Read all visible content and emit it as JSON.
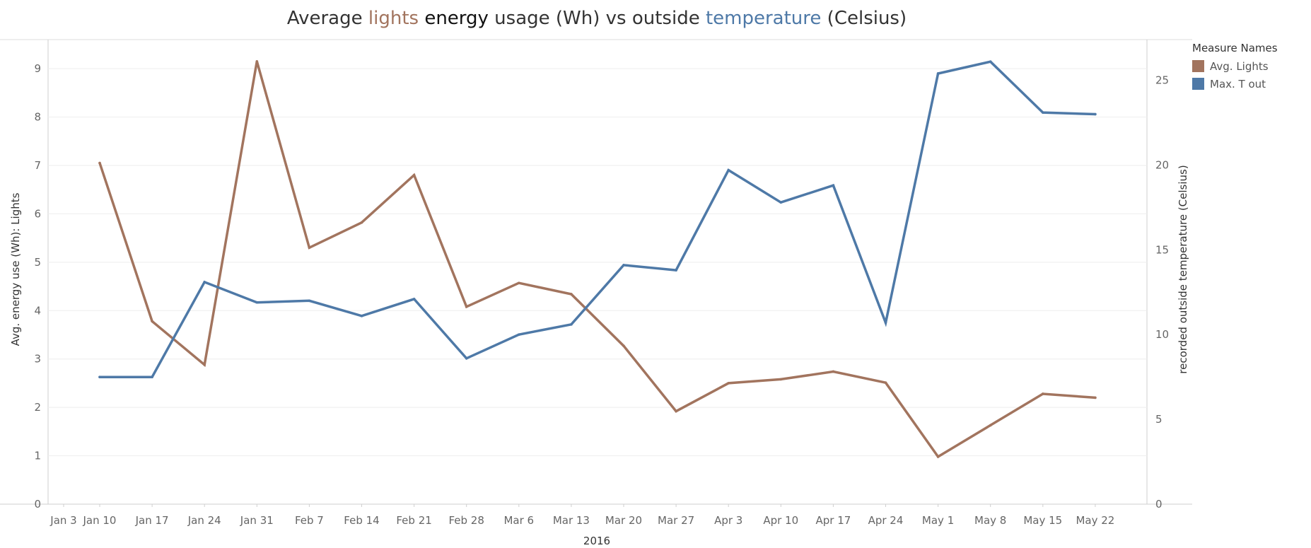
{
  "chart_data": {
    "type": "line",
    "title_parts": [
      {
        "text": "Average ",
        "color": "#333333"
      },
      {
        "text": "lights",
        "color": "#A2745E"
      },
      {
        "text": " energy",
        "color": "#111111"
      },
      {
        "text": " usage (Wh) vs outside ",
        "color": "#333333"
      },
      {
        "text": "temperature",
        "color": "#4E79A7"
      },
      {
        "text": " (Celsius)",
        "color": "#333333"
      }
    ],
    "xlabel": "2016",
    "ylabel_left": "Avg. energy use (Wh): Lights",
    "ylabel_right": "recorded outside temperature (Celsius)",
    "x_ticks": [
      "Jan 3",
      "Jan 10",
      "Jan 17",
      "Jan 24",
      "Jan 31",
      "Feb 7",
      "Feb 14",
      "Feb 21",
      "Feb 28",
      "Mar 6",
      "Mar 13",
      "Mar 20",
      "Mar 27",
      "Apr 3",
      "Apr 10",
      "Apr 17",
      "Apr 24",
      "May 1",
      "May 8",
      "May 15",
      "May 22"
    ],
    "x": [
      "Jan 10",
      "Jan 17",
      "Jan 24",
      "Jan 31",
      "Feb 7",
      "Feb 14",
      "Feb 21",
      "Feb 28",
      "Mar 6",
      "Mar 13",
      "Mar 20",
      "Mar 27",
      "Apr 3",
      "Apr 10",
      "Apr 17",
      "Apr 24",
      "May 1",
      "May 8",
      "May 15",
      "May 22"
    ],
    "y_left_ticks": [
      0,
      1,
      2,
      3,
      4,
      5,
      6,
      7,
      8,
      9
    ],
    "y_right_ticks": [
      0,
      5,
      10,
      15,
      20,
      25
    ],
    "ylim_left": [
      0,
      9.6
    ],
    "ylim_right": [
      0,
      27.4
    ],
    "grid": true,
    "legend_title": "Measure Names",
    "legend_position": "top-right",
    "series": [
      {
        "name": "Avg. Lights",
        "axis": "left",
        "color": "#A2745E",
        "values": [
          7.05,
          3.78,
          2.88,
          9.15,
          5.3,
          5.82,
          6.8,
          4.08,
          4.57,
          4.34,
          3.27,
          1.92,
          2.5,
          2.58,
          2.74,
          2.51,
          0.98,
          1.63,
          2.28,
          2.2
        ]
      },
      {
        "name": "Max. T out",
        "axis": "right",
        "color": "#4E79A7",
        "values": [
          7.5,
          7.5,
          13.1,
          11.9,
          12.0,
          11.1,
          12.1,
          8.6,
          10.0,
          10.6,
          14.1,
          13.8,
          19.7,
          17.8,
          18.8,
          10.7,
          25.4,
          26.1,
          23.1,
          23.0
        ]
      }
    ]
  }
}
